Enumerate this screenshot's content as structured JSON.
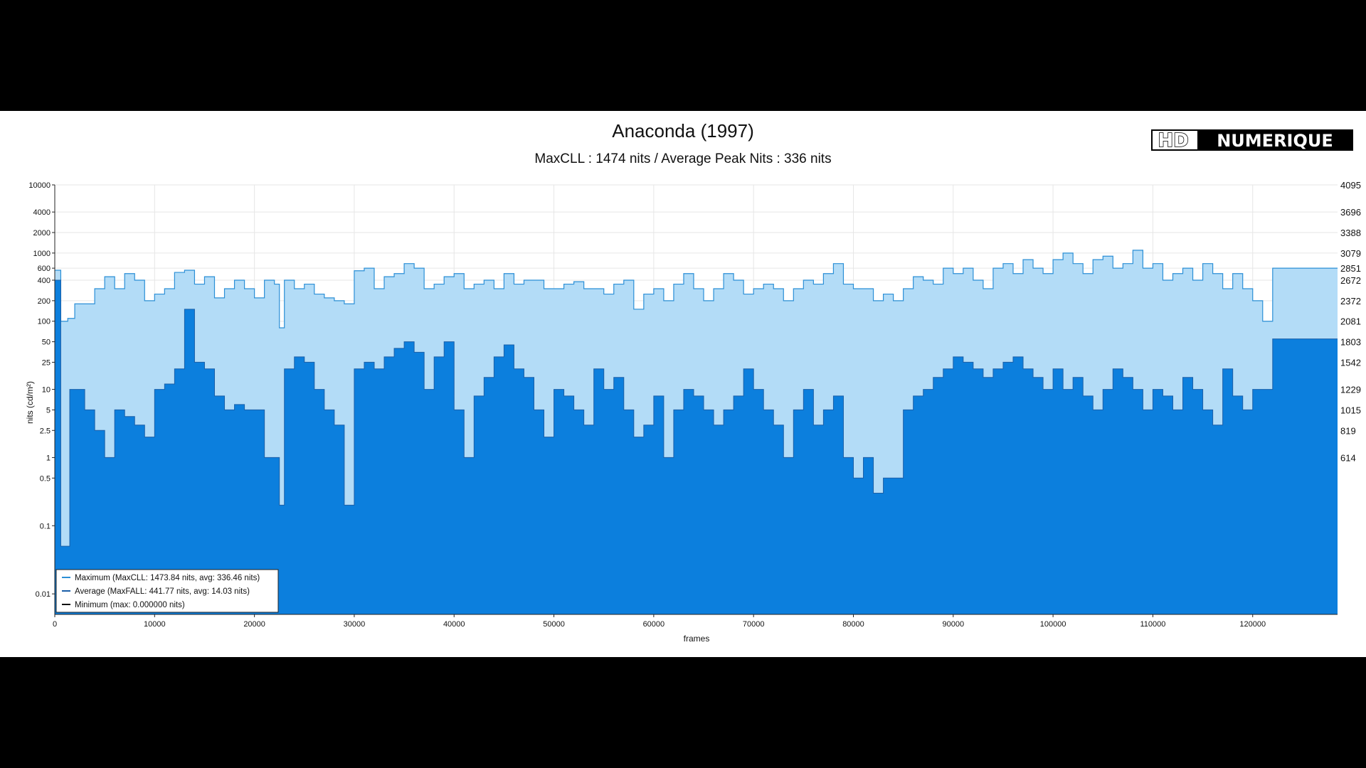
{
  "chart_data": {
    "type": "area",
    "title": "Anaconda (1997)",
    "subtitle": "MaxCLL : 1474 nits / Average Peak Nits : 336 nits",
    "xlabel": "frames",
    "ylabel": "nits (cd/m²)",
    "xlim": [
      0,
      128500
    ],
    "ylim": [
      0.005,
      10000
    ],
    "yscale": "log",
    "grid": true,
    "legend_position": "bottom-left",
    "x_ticks": [
      "0",
      "10000",
      "20000",
      "30000",
      "40000",
      "50000",
      "60000",
      "70000",
      "80000",
      "90000",
      "100000",
      "110000",
      "120000"
    ],
    "x_tick_values": [
      0,
      10000,
      20000,
      30000,
      40000,
      50000,
      60000,
      70000,
      80000,
      90000,
      100000,
      110000,
      120000
    ],
    "y_ticks": [
      "10000",
      "4000",
      "2000",
      "1000",
      "600",
      "400",
      "200",
      "100",
      "50",
      "25",
      "10",
      "5",
      "2.5",
      "1",
      "0.5",
      "0.1",
      "0.01"
    ],
    "y_tick_values": [
      10000,
      4000,
      2000,
      1000,
      600,
      400,
      200,
      100,
      50,
      25,
      10,
      5,
      2.5,
      1,
      0.5,
      0.1,
      0.01
    ],
    "y2_ticks": [
      "4095",
      "3696",
      "3388",
      "3079",
      "2851",
      "2672",
      "2372",
      "2081",
      "1803",
      "1542",
      "1229",
      "1015",
      "819",
      "614"
    ],
    "y2_tick_nits": [
      10000,
      4000,
      2000,
      1000,
      600,
      400,
      200,
      100,
      50,
      25,
      10,
      5,
      2.5,
      1
    ],
    "series": [
      {
        "name": "Maximum (MaxCLL: 1473.84 nits, avg: 336.46 nits)",
        "color": "#2b8fd6",
        "fill": "#b3dcf7",
        "x": [
          0,
          600,
          1300,
          2000,
          3000,
          4000,
          5000,
          6000,
          7000,
          8000,
          9000,
          10000,
          11000,
          12000,
          13000,
          14000,
          15000,
          16000,
          17000,
          18000,
          19000,
          20000,
          21000,
          22000,
          22500,
          23000,
          24000,
          25000,
          26000,
          27000,
          28000,
          29000,
          30000,
          31000,
          32000,
          33000,
          34000,
          35000,
          36000,
          37000,
          38000,
          39000,
          40000,
          41000,
          42000,
          43000,
          44000,
          45000,
          46000,
          47000,
          48000,
          49000,
          50000,
          51000,
          52000,
          53000,
          54000,
          55000,
          56000,
          57000,
          58000,
          59000,
          60000,
          61000,
          62000,
          63000,
          64000,
          65000,
          66000,
          67000,
          68000,
          69000,
          70000,
          71000,
          72000,
          73000,
          74000,
          75000,
          76000,
          77000,
          78000,
          79000,
          80000,
          81000,
          82000,
          83000,
          84000,
          85000,
          86000,
          87000,
          88000,
          89000,
          90000,
          91000,
          92000,
          93000,
          94000,
          95000,
          96000,
          97000,
          98000,
          99000,
          100000,
          101000,
          102000,
          103000,
          104000,
          105000,
          106000,
          107000,
          108000,
          109000,
          110000,
          111000,
          112000,
          113000,
          114000,
          115000,
          116000,
          117000,
          118000,
          119000,
          120000,
          121000,
          122000,
          128500
        ],
        "y": [
          560,
          100,
          110,
          180,
          180,
          300,
          450,
          300,
          500,
          400,
          200,
          250,
          300,
          520,
          560,
          350,
          450,
          220,
          300,
          400,
          300,
          220,
          400,
          350,
          80,
          400,
          300,
          350,
          250,
          220,
          200,
          180,
          550,
          600,
          300,
          450,
          500,
          700,
          600,
          300,
          350,
          450,
          500,
          300,
          350,
          400,
          300,
          500,
          350,
          400,
          400,
          300,
          300,
          350,
          380,
          300,
          300,
          250,
          350,
          400,
          150,
          250,
          300,
          200,
          350,
          500,
          300,
          200,
          300,
          500,
          400,
          250,
          300,
          350,
          300,
          200,
          300,
          400,
          350,
          500,
          700,
          350,
          300,
          300,
          200,
          250,
          200,
          300,
          450,
          400,
          350,
          600,
          500,
          600,
          400,
          300,
          600,
          700,
          500,
          800,
          600,
          500,
          800,
          1000,
          700,
          500,
          800,
          900,
          600,
          700,
          1100,
          600,
          700,
          400,
          500,
          600,
          400,
          700,
          500,
          300,
          500,
          300,
          200,
          100,
          600,
          600
        ]
      },
      {
        "name": "Average (MaxFALL: 441.77 nits, avg: 14.03 nits)",
        "color": "#1a5fa8",
        "fill": "#0c7fdd",
        "x": [
          0,
          600,
          1500,
          2000,
          3000,
          4000,
          5000,
          6000,
          7000,
          8000,
          9000,
          10000,
          11000,
          12000,
          13000,
          14000,
          15000,
          16000,
          17000,
          18000,
          19000,
          20000,
          21000,
          22000,
          22500,
          23000,
          24000,
          25000,
          26000,
          27000,
          28000,
          29000,
          30000,
          31000,
          32000,
          33000,
          34000,
          35000,
          36000,
          37000,
          38000,
          39000,
          40000,
          41000,
          42000,
          43000,
          44000,
          45000,
          46000,
          47000,
          48000,
          49000,
          50000,
          51000,
          52000,
          53000,
          54000,
          55000,
          56000,
          57000,
          58000,
          59000,
          60000,
          61000,
          62000,
          63000,
          64000,
          65000,
          66000,
          67000,
          68000,
          69000,
          70000,
          71000,
          72000,
          73000,
          74000,
          75000,
          76000,
          77000,
          78000,
          79000,
          80000,
          81000,
          82000,
          83000,
          84000,
          85000,
          86000,
          87000,
          88000,
          89000,
          90000,
          91000,
          92000,
          93000,
          94000,
          95000,
          96000,
          97000,
          98000,
          99000,
          100000,
          101000,
          102000,
          103000,
          104000,
          105000,
          106000,
          107000,
          108000,
          109000,
          110000,
          111000,
          112000,
          113000,
          114000,
          115000,
          116000,
          117000,
          118000,
          119000,
          120000,
          121000,
          122000,
          128500
        ],
        "y": [
          400,
          0.05,
          10,
          10,
          5,
          2.5,
          1,
          5,
          4,
          3,
          2,
          10,
          12,
          20,
          150,
          25,
          20,
          8,
          5,
          6,
          5,
          5,
          1,
          1,
          0.2,
          20,
          30,
          25,
          10,
          5,
          3,
          0.2,
          20,
          25,
          20,
          30,
          40,
          50,
          35,
          10,
          30,
          50,
          5,
          1,
          8,
          15,
          30,
          45,
          20,
          15,
          5,
          2,
          10,
          8,
          5,
          3,
          20,
          10,
          15,
          5,
          2,
          3,
          8,
          1,
          5,
          10,
          8,
          5,
          3,
          5,
          8,
          20,
          10,
          5,
          3,
          1,
          5,
          10,
          3,
          5,
          8,
          1,
          0.5,
          1,
          0.3,
          0.5,
          0.5,
          5,
          8,
          10,
          15,
          20,
          30,
          25,
          20,
          15,
          20,
          25,
          30,
          20,
          15,
          10,
          20,
          10,
          15,
          8,
          5,
          10,
          20,
          15,
          10,
          5,
          10,
          8,
          5,
          15,
          10,
          5,
          3,
          20,
          8,
          5,
          10,
          10,
          55,
          55
        ]
      },
      {
        "name": "Minimum (max: 0.000000 nits)",
        "color": "#111111",
        "fill": "none",
        "x": [
          0,
          128500
        ],
        "y": [
          0,
          0
        ]
      }
    ]
  },
  "logo": {
    "part1": "HD",
    "part2": "NUMERIQUE"
  }
}
